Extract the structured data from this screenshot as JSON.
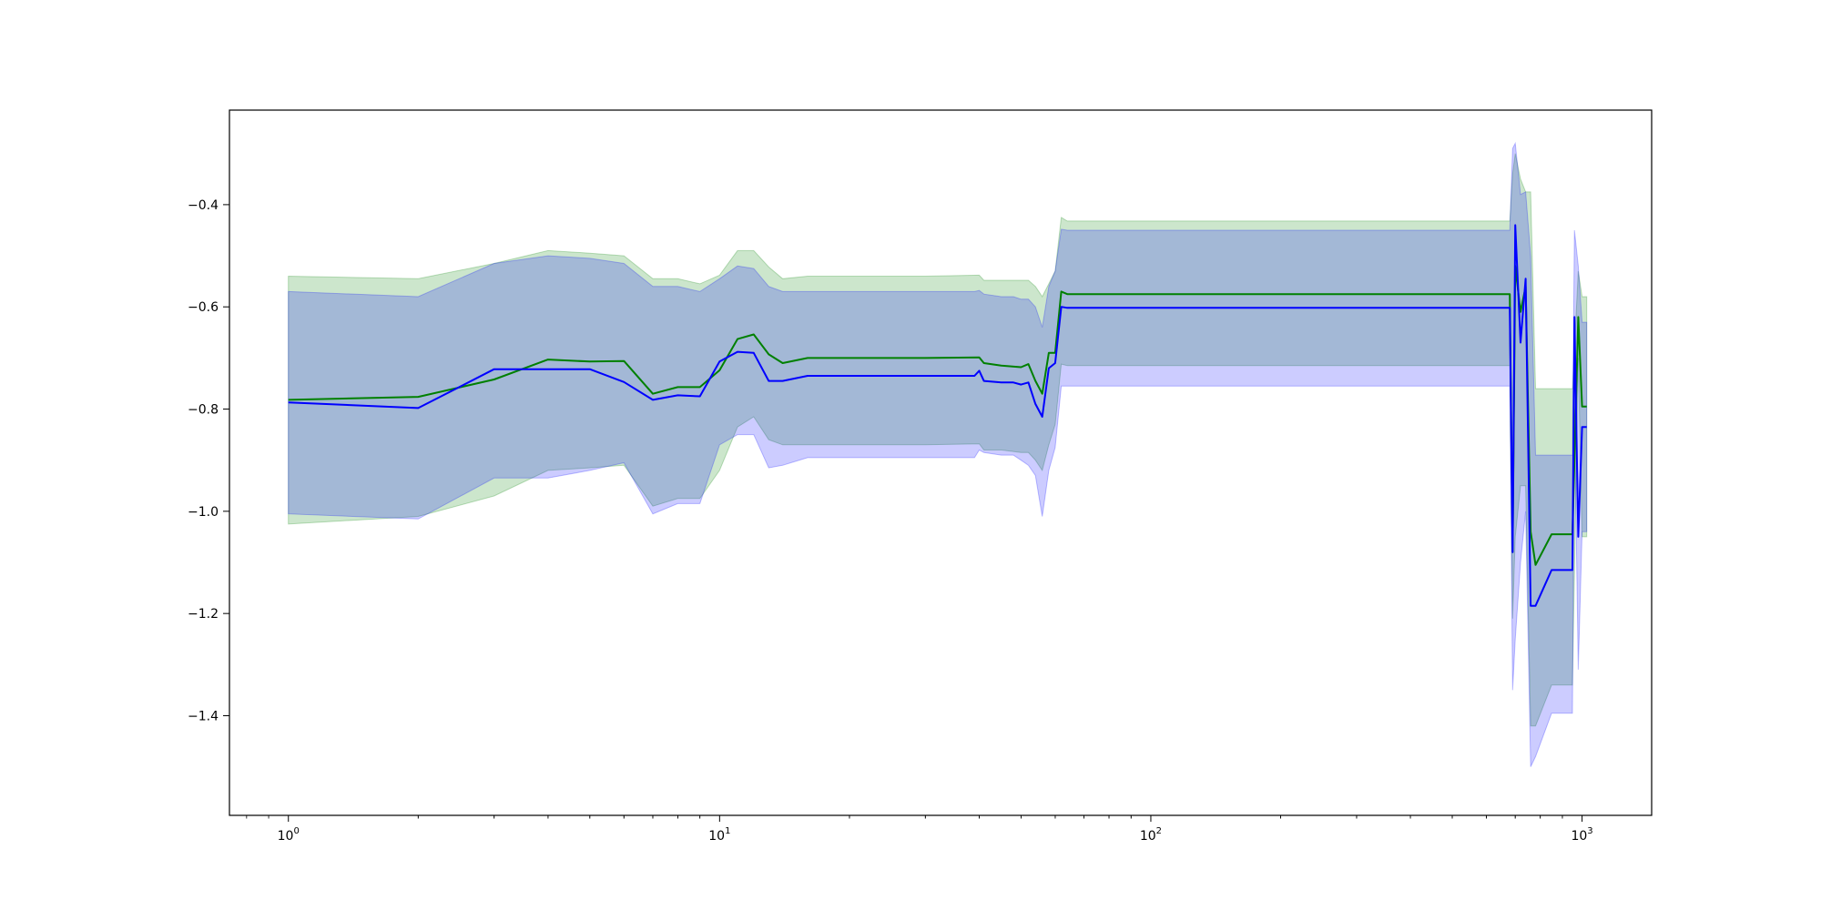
{
  "chart_data": {
    "type": "line",
    "title": "",
    "xlabel": "",
    "ylabel": "",
    "x_scale": "log",
    "xlim": [
      0.73,
      1450
    ],
    "ylim": [
      -1.595,
      -0.215
    ],
    "x_ticks": [
      {
        "value": 1,
        "base": "10",
        "exp": "0"
      },
      {
        "value": 10,
        "base": "10",
        "exp": "1"
      },
      {
        "value": 100,
        "base": "10",
        "exp": "2"
      },
      {
        "value": 1000,
        "base": "10",
        "exp": "3"
      }
    ],
    "y_ticks": [
      {
        "value": -0.4,
        "label": "−0.4"
      },
      {
        "value": -0.6,
        "label": "−0.6"
      },
      {
        "value": -0.8,
        "label": "−0.8"
      },
      {
        "value": -1.0,
        "label": "−1.0"
      },
      {
        "value": -1.2,
        "label": "−1.2"
      },
      {
        "value": -1.4,
        "label": "−1.4"
      }
    ],
    "grid": false,
    "legend": "none",
    "series": [
      {
        "color": "#008000",
        "band_color": "#008000",
        "band_opacity": 0.2,
        "x": [
          1,
          2,
          3,
          4,
          5,
          6,
          7,
          8,
          9,
          10,
          11,
          12,
          13,
          14,
          16,
          20,
          30,
          40,
          41,
          45,
          50,
          52,
          54,
          56,
          58,
          60,
          62,
          64,
          100,
          200,
          500,
          680,
          690,
          700,
          720,
          740,
          760,
          780,
          850,
          950,
          980,
          1000,
          1025
        ],
        "mean": [
          -0.782,
          -0.776,
          -0.742,
          -0.703,
          -0.707,
          -0.706,
          -0.77,
          -0.757,
          -0.757,
          -0.724,
          -0.663,
          -0.654,
          -0.693,
          -0.71,
          -0.7,
          -0.7,
          -0.7,
          -0.699,
          -0.71,
          -0.715,
          -0.718,
          -0.712,
          -0.745,
          -0.77,
          -0.69,
          -0.69,
          -0.57,
          -0.575,
          -0.575,
          -0.575,
          -0.575,
          -0.575,
          -1.08,
          -0.52,
          -0.61,
          -0.56,
          -1.04,
          -1.105,
          -1.045,
          -1.045,
          -0.62,
          -0.795,
          -0.795
        ],
        "upper": [
          -0.54,
          -0.545,
          -0.515,
          -0.49,
          -0.495,
          -0.5,
          -0.545,
          -0.545,
          -0.555,
          -0.538,
          -0.49,
          -0.49,
          -0.522,
          -0.545,
          -0.54,
          -0.54,
          -0.54,
          -0.538,
          -0.548,
          -0.548,
          -0.548,
          -0.548,
          -0.56,
          -0.58,
          -0.555,
          -0.53,
          -0.425,
          -0.432,
          -0.432,
          -0.432,
          -0.432,
          -0.432,
          -0.34,
          -0.3,
          -0.35,
          -0.375,
          -0.375,
          -0.76,
          -0.76,
          -0.76,
          -0.53,
          -0.58,
          -0.58
        ],
        "lower": [
          -1.025,
          -1.01,
          -0.97,
          -0.92,
          -0.915,
          -0.91,
          -0.99,
          -0.975,
          -0.975,
          -0.92,
          -0.835,
          -0.815,
          -0.86,
          -0.87,
          -0.87,
          -0.87,
          -0.87,
          -0.868,
          -0.88,
          -0.88,
          -0.885,
          -0.885,
          -0.9,
          -0.92,
          -0.87,
          -0.83,
          -0.712,
          -0.715,
          -0.715,
          -0.715,
          -0.715,
          -0.715,
          -1.21,
          -1.05,
          -0.95,
          -0.95,
          -1.42,
          -1.42,
          -1.34,
          -1.34,
          -0.7,
          -1.05,
          -1.05
        ]
      },
      {
        "color": "#0000ff",
        "band_color": "#0000ff",
        "band_opacity": 0.2,
        "x": [
          1,
          2,
          3,
          4,
          5,
          6,
          7,
          8,
          9,
          10,
          11,
          12,
          13,
          14,
          16,
          20,
          30,
          39,
          40,
          41,
          45,
          48,
          50,
          52,
          54,
          56,
          58,
          60,
          62,
          64,
          100,
          200,
          500,
          680,
          690,
          700,
          720,
          740,
          760,
          780,
          850,
          950,
          960,
          980,
          1000,
          1025
        ],
        "mean": [
          -0.787,
          -0.798,
          -0.722,
          -0.722,
          -0.722,
          -0.747,
          -0.782,
          -0.773,
          -0.775,
          -0.707,
          -0.688,
          -0.69,
          -0.745,
          -0.745,
          -0.735,
          -0.735,
          -0.735,
          -0.735,
          -0.725,
          -0.745,
          -0.748,
          -0.748,
          -0.752,
          -0.748,
          -0.79,
          -0.815,
          -0.72,
          -0.71,
          -0.6,
          -0.602,
          -0.602,
          -0.602,
          -0.602,
          -0.602,
          -1.08,
          -0.44,
          -0.67,
          -0.545,
          -1.185,
          -1.185,
          -1.115,
          -1.115,
          -0.62,
          -1.05,
          -0.835,
          -0.835
        ],
        "upper": [
          -0.57,
          -0.58,
          -0.515,
          -0.5,
          -0.505,
          -0.515,
          -0.56,
          -0.56,
          -0.57,
          -0.545,
          -0.52,
          -0.525,
          -0.56,
          -0.57,
          -0.57,
          -0.57,
          -0.57,
          -0.57,
          -0.568,
          -0.575,
          -0.58,
          -0.58,
          -0.585,
          -0.585,
          -0.6,
          -0.64,
          -0.56,
          -0.53,
          -0.448,
          -0.45,
          -0.45,
          -0.45,
          -0.45,
          -0.45,
          -0.29,
          -0.28,
          -0.38,
          -0.375,
          -0.5,
          -0.89,
          -0.89,
          -0.89,
          -0.45,
          -0.52,
          -0.63,
          -0.63
        ],
        "lower": [
          -1.005,
          -1.015,
          -0.935,
          -0.935,
          -0.92,
          -0.905,
          -1.005,
          -0.985,
          -0.985,
          -0.87,
          -0.85,
          -0.85,
          -0.915,
          -0.91,
          -0.895,
          -0.895,
          -0.895,
          -0.895,
          -0.88,
          -0.885,
          -0.89,
          -0.89,
          -0.9,
          -0.91,
          -0.93,
          -1.01,
          -0.92,
          -0.875,
          -0.755,
          -0.755,
          -0.755,
          -0.755,
          -0.755,
          -0.755,
          -1.35,
          -1.25,
          -1.1,
          -1.0,
          -1.5,
          -1.48,
          -1.395,
          -1.395,
          -0.8,
          -1.31,
          -1.04,
          -1.04
        ]
      }
    ]
  }
}
